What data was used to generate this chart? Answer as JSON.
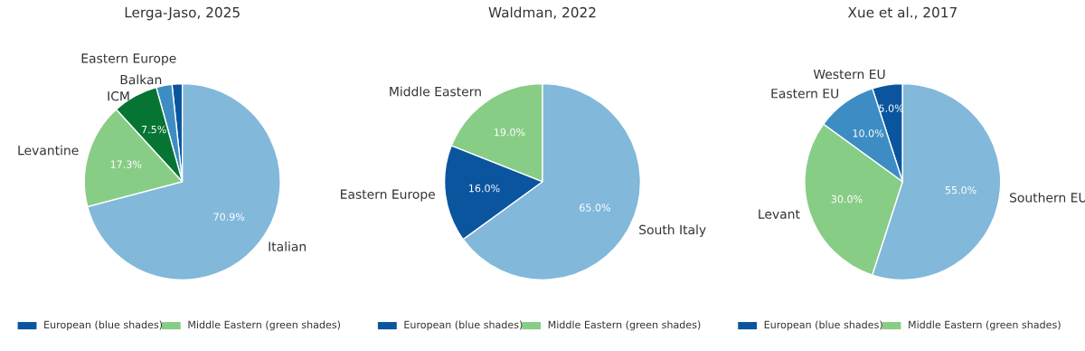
{
  "chart_data": [
    {
      "type": "pie",
      "title": "Lerga-Jaso, 2025",
      "categories": [
        "Eastern Europe",
        "Balkan",
        "ICM",
        "Levantine",
        "Italian"
      ],
      "values": [
        1.7,
        2.6,
        7.5,
        17.3,
        70.9
      ],
      "colors": [
        "#0b559f",
        "#3d8dc4",
        "#067433",
        "#88cd86",
        "#82b8da"
      ],
      "value_labels": [
        null,
        null,
        "7.5%",
        "17.3%",
        "70.9%"
      ],
      "annotations": [
        "European (blue shades)",
        "Middle Eastern (green shades)"
      ]
    },
    {
      "type": "pie",
      "title": "Waldman, 2022",
      "categories": [
        "Middle Eastern",
        "Eastern Europe",
        "South Italy"
      ],
      "values": [
        19.0,
        16.0,
        65.0
      ],
      "colors": [
        "#88cd86",
        "#0b559f",
        "#82b8da"
      ],
      "value_labels": [
        "19.0%",
        "16.0%",
        "65.0%"
      ],
      "annotations": [
        "European (blue shades)",
        "Middle Eastern (green shades)"
      ]
    },
    {
      "type": "pie",
      "title": "Xue et al., 2017",
      "categories": [
        "Western EU",
        "Eastern EU",
        "Levant",
        "Southern EU"
      ],
      "values": [
        5.0,
        10.0,
        30.0,
        55.0
      ],
      "colors": [
        "#0b559f",
        "#3d8dc4",
        "#88cd86",
        "#82b8da"
      ],
      "value_labels": [
        "5.0%",
        "10.0%",
        "30.0%",
        "55.0%"
      ],
      "annotations": [
        "European (blue shades)",
        "Middle Eastern (green shades)"
      ]
    }
  ]
}
